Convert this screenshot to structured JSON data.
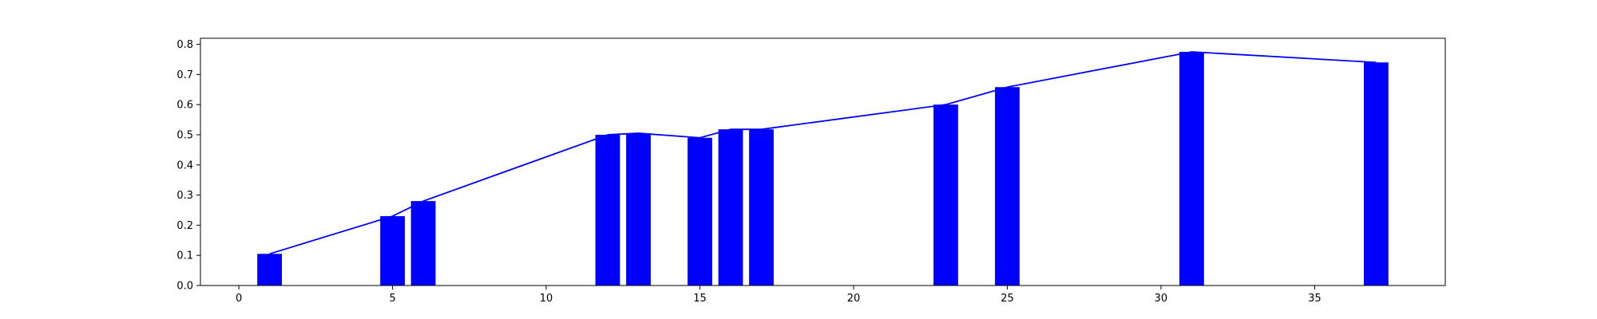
{
  "chart_data": {
    "type": "bar",
    "title": "",
    "xlabel": "",
    "ylabel": "",
    "xlim": [
      -1.25,
      39.25
    ],
    "ylim": [
      0,
      0.82
    ],
    "grid": false,
    "x_ticks": [
      0,
      5,
      10,
      15,
      20,
      25,
      30,
      35
    ],
    "y_ticks": [
      0.0,
      0.1,
      0.2,
      0.3,
      0.4,
      0.5,
      0.6,
      0.7,
      0.8
    ],
    "x_tick_labels": [
      "0",
      "5",
      "10",
      "15",
      "20",
      "25",
      "30",
      "35"
    ],
    "y_tick_labels": [
      "0.0",
      "0.1",
      "0.2",
      "0.3",
      "0.4",
      "0.5",
      "0.6",
      "0.7",
      "0.8"
    ],
    "bar_color": "#0000ff",
    "line_color": "#0000ff",
    "bar_width": 0.8,
    "x": [
      1,
      5,
      6,
      12,
      13,
      15,
      16,
      17,
      23,
      25,
      31,
      37
    ],
    "values": [
      0.105,
      0.23,
      0.28,
      0.5,
      0.505,
      0.49,
      0.518,
      0.518,
      0.6,
      0.658,
      0.775,
      0.74
    ]
  }
}
